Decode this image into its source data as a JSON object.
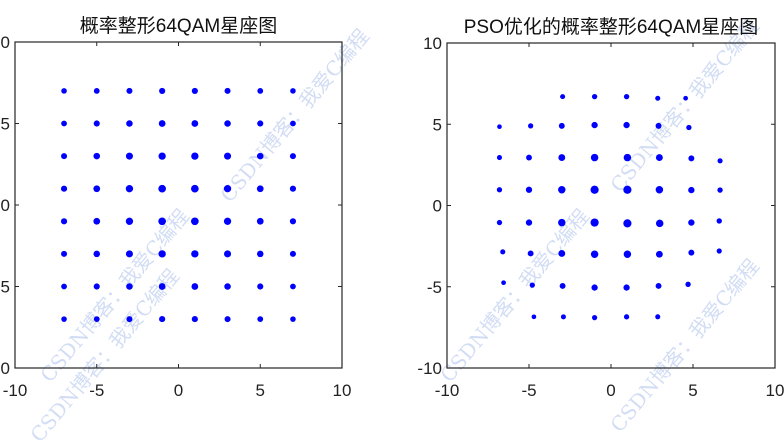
{
  "watermark": "CSDN博客：我爱C编程",
  "chart_data": [
    {
      "type": "scatter",
      "title": "概率整形64QAM星座图",
      "xlim": [
        -10,
        10
      ],
      "ylim": [
        -10,
        10
      ],
      "xticks": [
        "-10",
        "-5",
        "0",
        "5",
        "10"
      ],
      "yticks": [
        "10",
        "5",
        "0",
        "-5",
        "-10"
      ],
      "grid": false,
      "marker_color": "#0000ff",
      "points": [
        [
          -7,
          7
        ],
        [
          -5,
          7
        ],
        [
          -3,
          7
        ],
        [
          -1,
          7
        ],
        [
          1,
          7
        ],
        [
          3,
          7
        ],
        [
          5,
          7
        ],
        [
          7,
          7
        ],
        [
          -7,
          5
        ],
        [
          -5,
          5
        ],
        [
          -3,
          5
        ],
        [
          -1,
          5
        ],
        [
          1,
          5
        ],
        [
          3,
          5
        ],
        [
          5,
          5
        ],
        [
          7,
          5
        ],
        [
          -7,
          3
        ],
        [
          -5,
          3
        ],
        [
          -3,
          3
        ],
        [
          -1,
          3
        ],
        [
          1,
          3
        ],
        [
          3,
          3
        ],
        [
          5,
          3
        ],
        [
          7,
          3
        ],
        [
          -7,
          1
        ],
        [
          -5,
          1
        ],
        [
          -3,
          1
        ],
        [
          -1,
          1
        ],
        [
          1,
          1
        ],
        [
          3,
          1
        ],
        [
          5,
          1
        ],
        [
          7,
          1
        ],
        [
          -7,
          -1
        ],
        [
          -5,
          -1
        ],
        [
          -3,
          -1
        ],
        [
          -1,
          -1
        ],
        [
          1,
          -1
        ],
        [
          3,
          -1
        ],
        [
          5,
          -1
        ],
        [
          7,
          -1
        ],
        [
          -7,
          -3
        ],
        [
          -5,
          -3
        ],
        [
          -3,
          -3
        ],
        [
          -1,
          -3
        ],
        [
          1,
          -3
        ],
        [
          3,
          -3
        ],
        [
          5,
          -3
        ],
        [
          7,
          -3
        ],
        [
          -7,
          -5
        ],
        [
          -5,
          -5
        ],
        [
          -3,
          -5
        ],
        [
          -1,
          -5
        ],
        [
          1,
          -5
        ],
        [
          3,
          -5
        ],
        [
          5,
          -5
        ],
        [
          7,
          -5
        ],
        [
          -7,
          -7
        ],
        [
          -5,
          -7
        ],
        [
          -3,
          -7
        ],
        [
          -1,
          -7
        ],
        [
          1,
          -7
        ],
        [
          3,
          -7
        ],
        [
          5,
          -7
        ],
        [
          7,
          -7
        ]
      ]
    },
    {
      "type": "scatter",
      "title": "PSO优化的概率整形64QAM星座图",
      "xlim": [
        -10,
        10
      ],
      "ylim": [
        -10,
        10
      ],
      "xticks": [
        "-10",
        "-5",
        "0",
        "5",
        "10"
      ],
      "yticks": [
        "10",
        "5",
        "0",
        "-5",
        "-10"
      ],
      "grid": false,
      "marker_color": "#0000ff",
      "points": [
        [
          -2.95,
          6.7
        ],
        [
          -1.0,
          6.7
        ],
        [
          0.95,
          6.7
        ],
        [
          2.85,
          6.6
        ],
        [
          4.55,
          6.6
        ],
        [
          -6.8,
          4.85
        ],
        [
          -4.9,
          4.9
        ],
        [
          -3.0,
          4.9
        ],
        [
          -1.0,
          4.95
        ],
        [
          0.95,
          4.95
        ],
        [
          2.9,
          4.9
        ],
        [
          4.75,
          4.8
        ],
        [
          -6.8,
          2.95
        ],
        [
          -5.0,
          2.95
        ],
        [
          -3.0,
          2.95
        ],
        [
          -1.0,
          2.95
        ],
        [
          1.0,
          2.95
        ],
        [
          2.95,
          2.95
        ],
        [
          4.9,
          2.9
        ],
        [
          6.65,
          2.75
        ],
        [
          -6.8,
          0.97
        ],
        [
          -5.0,
          0.97
        ],
        [
          -3.0,
          0.97
        ],
        [
          -1.0,
          0.97
        ],
        [
          1.0,
          0.97
        ],
        [
          2.95,
          0.97
        ],
        [
          4.9,
          0.95
        ],
        [
          6.65,
          0.95
        ],
        [
          -6.8,
          -1.05
        ],
        [
          -5.0,
          -1.05
        ],
        [
          -3.0,
          -1.05
        ],
        [
          -1.0,
          -1.05
        ],
        [
          1.0,
          -1.1
        ],
        [
          2.97,
          -1.1
        ],
        [
          4.9,
          -1.05
        ],
        [
          6.6,
          -0.95
        ],
        [
          -6.6,
          -2.85
        ],
        [
          -4.9,
          -2.95
        ],
        [
          -3.0,
          -2.95
        ],
        [
          -1.0,
          -3.0
        ],
        [
          1.0,
          -3.0
        ],
        [
          2.95,
          -3.0
        ],
        [
          4.9,
          -2.9
        ],
        [
          6.6,
          -2.8
        ],
        [
          -6.55,
          -4.75
        ],
        [
          -4.8,
          -4.9
        ],
        [
          -2.95,
          -4.95
        ],
        [
          -1.0,
          -5.05
        ],
        [
          0.95,
          -5.05
        ],
        [
          2.9,
          -4.95
        ],
        [
          4.7,
          -4.85
        ],
        [
          -4.7,
          -6.85
        ],
        [
          -2.9,
          -6.85
        ],
        [
          -1.0,
          -6.9
        ],
        [
          0.95,
          -6.85
        ],
        [
          2.85,
          -6.85
        ]
      ]
    }
  ]
}
